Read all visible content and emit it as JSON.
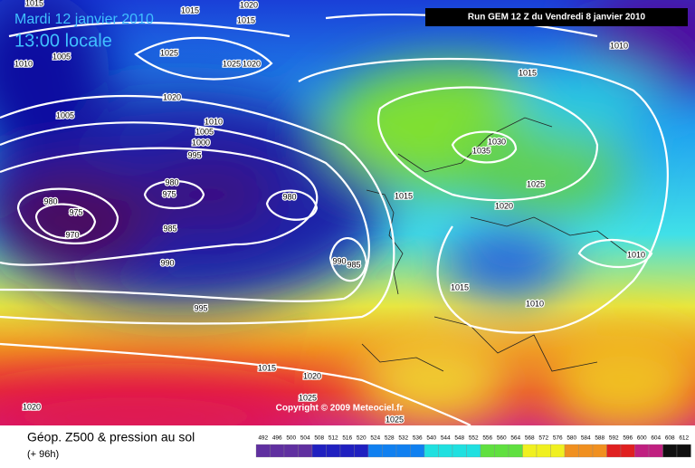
{
  "header": {
    "date": "Mardi 12 janvier 2010",
    "time": "13:00 locale",
    "run": "Run GEM 12 Z du Vendredi 8 janvier 2010",
    "copyright": "Copyright © 2009 Meteociel.fr"
  },
  "footer": {
    "title": "Géop. Z500 & pression au sol",
    "lead": "(+ 96h)"
  },
  "scale": {
    "labels": [
      492,
      496,
      500,
      504,
      508,
      512,
      516,
      520,
      524,
      528,
      532,
      536,
      540,
      544,
      548,
      552,
      556,
      560,
      564,
      568,
      572,
      576,
      580,
      584,
      588,
      592,
      596,
      600,
      604,
      608,
      612
    ]
  },
  "isobar_labels": [
    1015,
    1015,
    1020,
    1015,
    1010,
    1005,
    1025,
    1025,
    1020,
    1005,
    1020,
    1010,
    1005,
    1000,
    995,
    980,
    975,
    970,
    980,
    975,
    985,
    980,
    990,
    990,
    985,
    995,
    1015,
    1015,
    1030,
    1035,
    1025,
    1020,
    1010,
    1015,
    1010,
    1015,
    1020,
    1025,
    1025,
    1020,
    1010
  ]
}
